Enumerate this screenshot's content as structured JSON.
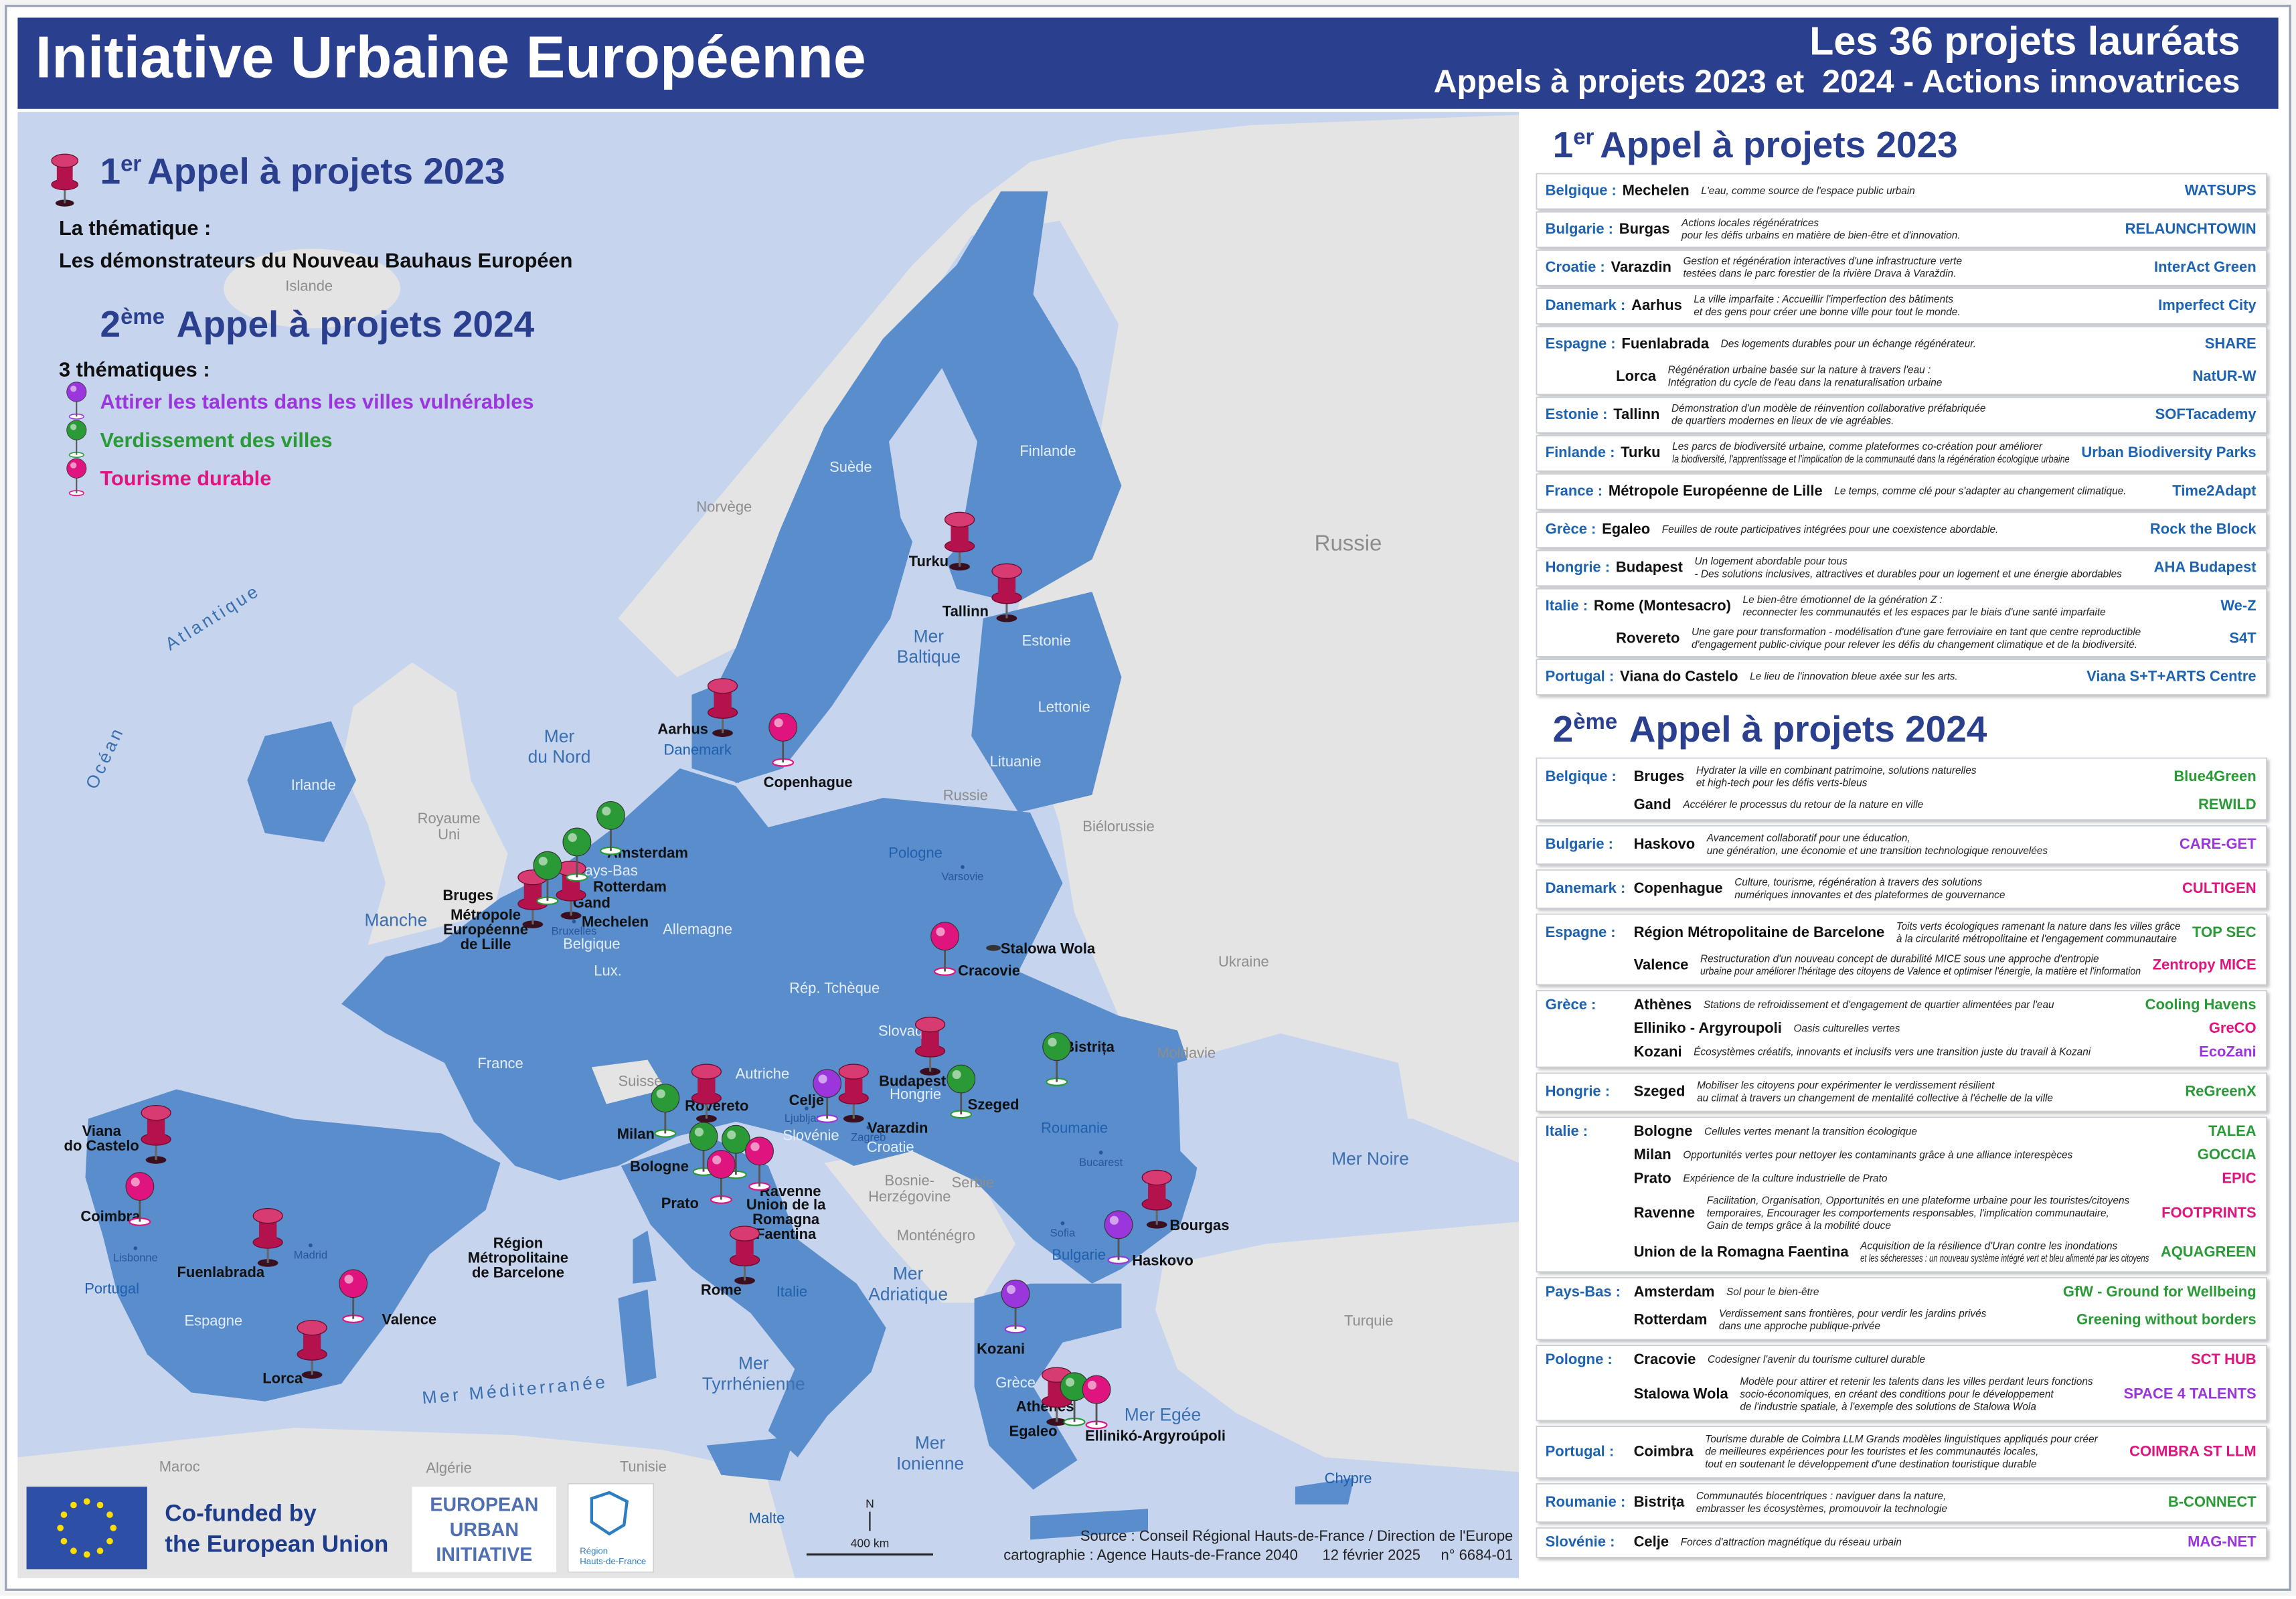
{
  "header": {
    "title": "Initiative Urbaine Européenne",
    "subtitle_line1": "Les 36 projets lauréats",
    "subtitle_line2": "Appels à projets 2023 et  2024 - Actions innovatrices"
  },
  "legend": {
    "call1": {
      "number": "1",
      "suffix": "er",
      "title": "Appel à projets 2023"
    },
    "call1_theme_label": "La thématique :",
    "call1_theme": "Les démonstrateurs du Nouveau Bauhaus Européen",
    "call2": {
      "number": "2",
      "suffix": "ème",
      "title": "Appel à projets 2024"
    },
    "call2_themes_label": "3 thématiques :",
    "themes": [
      {
        "name": "Attirer les talents dans les villes vulnérables",
        "color": "#9b35dc"
      },
      {
        "name": "Verdissement des villes",
        "color": "#2a9a36"
      },
      {
        "name": "Tourisme durable",
        "color": "#e0147f"
      }
    ],
    "call1_pin_color": "#b3124c"
  },
  "map": {
    "countries": [
      "Islande",
      "Irlande",
      [
        "Royaume",
        "Uni"
      ],
      "Norvège",
      "Suède",
      "Finlande",
      "Russie",
      "Estonie",
      "Lettonie",
      "Lituanie",
      "Russie",
      "Biélorussie",
      "Pologne",
      "Danemark",
      "Pays-Bas",
      "Belgique",
      "Lux.",
      "Allemagne",
      "Rép. Tchèque",
      "Slovaq",
      "Hongrie",
      "Autriche",
      "Suisse",
      "Slovénie",
      "Croatie",
      "Ukraine",
      "Moldavie",
      "Roumanie",
      "France",
      "Espagne",
      "Portugal",
      "Italie",
      "Bulgarie",
      "Grèce",
      "Turquie",
      [
        "Bosnie-",
        "Herzégovine"
      ],
      "Serbie",
      "Monténégro",
      "Maroc",
      "Algérie",
      "Tunisie",
      "Malte",
      "Chypre"
    ],
    "capitals": [
      "Varsovie",
      "Bucarest",
      "Sofia",
      "Madrid",
      "Lisbonne",
      "Bruxelles",
      "Ljubljana",
      "Zagreb"
    ],
    "seas": [
      "Océan",
      "Atlantique",
      [
        "Mer",
        "du Nord"
      ],
      "Manche",
      [
        "Mer",
        "Baltique"
      ],
      "Mer Noire",
      [
        "Mer",
        "Adriatique"
      ],
      [
        "Mer",
        "Tyrrhénienne"
      ],
      [
        "Mer",
        "Ionienne"
      ],
      "Mer Egée",
      "Mer Méditerranée"
    ],
    "cities": [
      "Turku",
      "Tallinn",
      "Aarhus",
      "Copenhague",
      "Amsterdam",
      "Rotterdam",
      "Bruges",
      "Gand",
      "Mechelen",
      [
        "Métropole",
        "Européenne",
        "de Lille"
      ],
      "Cracovie",
      "Stalowa Wola",
      "Budapest",
      "Bistrița",
      "Szeged",
      "Celje",
      "Varazdin",
      "Milan",
      "Rovereto",
      "Bologne",
      "Ravenne",
      "Prato",
      [
        "Union de la",
        "Romagna",
        "Faentina"
      ],
      "Rome",
      [
        "Viana",
        "do Castelo"
      ],
      "Coimbra",
      "Fuenlabrada",
      [
        "Région",
        "Métropolitaine",
        "de Barcelone"
      ],
      "Valence",
      "Lorca",
      "Bourgas",
      "Haskovo",
      "Kozani",
      "Athènes",
      "Egaleo",
      "Ellinikó-Argyroúpoli"
    ]
  },
  "panel": {
    "call1_project_color": "#1d63b0",
    "call1_projects": [
      {
        "country": "Belgique :",
        "items": [
          {
            "city": "Mechelen",
            "description": [
              "L'eau, comme source de l'espace public urbain"
            ],
            "project": "WATSUPS"
          }
        ]
      },
      {
        "country": "Bulgarie :",
        "items": [
          {
            "city": "Burgas",
            "description": [
              "Actions locales régénératrices",
              "pour les défis urbains en matière de bien-être et d'innovation."
            ],
            "project": "RELAUNCHTOWIN"
          }
        ]
      },
      {
        "country": "Croatie :",
        "items": [
          {
            "city": "Varazdin",
            "description": [
              "Gestion et régénération interactives d'une infrastructure verte",
              "testées dans le parc forestier de la rivière Drava à Varaždin."
            ],
            "project": "InterAct Green"
          }
        ]
      },
      {
        "country": "Danemark :",
        "items": [
          {
            "city": "Aarhus",
            "description": [
              "La ville imparfaite : Accueillir l'imperfection des bâtiments",
              "et des gens pour créer une bonne ville pour tout le monde."
            ],
            "project": "Imperfect City"
          }
        ]
      },
      {
        "country": "Espagne :",
        "items": [
          {
            "city": "Fuenlabrada",
            "description": [
              "Des logements durables pour un échange régénérateur."
            ],
            "project": "SHARE"
          },
          {
            "city": "Lorca",
            "description": [
              "Régénération urbaine basée sur la nature à travers l'eau :",
              "Intégration du cycle de l'eau dans la renaturalisation urbaine"
            ],
            "project": "NatUR-W"
          }
        ]
      },
      {
        "country": "Estonie :",
        "items": [
          {
            "city": "Tallinn",
            "description": [
              "Démonstration d'un modèle de réinvention collaborative préfabriquée",
              "de quartiers modernes en lieux de vie agréables."
            ],
            "project": "SOFTacademy"
          }
        ]
      },
      {
        "country": "Finlande :",
        "items": [
          {
            "city": "Turku",
            "description": [
              "Les parcs de biodiversité urbaine, comme plateformes co-création pour améliorer",
              "la biodiversité, l'apprentissage et l'implication de la communauté dans la régénération écologique urbaine"
            ],
            "project": "Urban Biodiversity Parks"
          }
        ]
      },
      {
        "country": "France :",
        "items": [
          {
            "city": "Métropole Européenne de Lille",
            "description": [
              "Le temps, comme clé pour s'adapter au changement climatique."
            ],
            "project": "Time2Adapt"
          }
        ]
      },
      {
        "country": "Grèce :",
        "items": [
          {
            "city": "Egaleo",
            "description": [
              "Feuilles de route participatives intégrées pour une coexistence abordable."
            ],
            "project": "Rock the Block"
          }
        ]
      },
      {
        "country": "Hongrie :",
        "items": [
          {
            "city": "Budapest",
            "description": [
              "Un logement abordable pour tous",
              "- Des solutions inclusives, attractives et durables pour un logement et une énergie abordables"
            ],
            "project": "AHA Budapest"
          }
        ]
      },
      {
        "country": "Italie :",
        "items": [
          {
            "city": "Rome (Montesacro)",
            "description": [
              "Le bien-être émotionnel de la génération Z :",
              "reconnecter les communautés et les espaces par le biais d'une santé imparfaite"
            ],
            "project": "We-Z"
          },
          {
            "city": "Rovereto",
            "description": [
              "Une gare pour transformation - modélisation d'une gare ferroviaire en tant que centre reproductible",
              "d'engagement public-civique pour relever les défis du changement climatique et de la biodiversité."
            ],
            "project": "S4T"
          }
        ]
      },
      {
        "country": "Portugal :",
        "items": [
          {
            "city": "Viana do Castelo",
            "description": [
              "Le lieu de l'innovation bleue axée sur les arts."
            ],
            "project": "Viana S+T+ARTS Centre"
          }
        ]
      }
    ],
    "call2_projects": [
      {
        "country": "Belgique :",
        "items": [
          {
            "city": "Bruges",
            "description": [
              "Hydrater la ville en combinant patrimoine, solutions naturelles",
              "et high-tech pour les défis verts-bleus"
            ],
            "project": "Blue4Green",
            "color": "#2a9a36"
          },
          {
            "city": "Gand",
            "description": [
              "Accélérer le processus du retour de la nature en ville"
            ],
            "project": "REWILD",
            "color": "#2a9a36"
          }
        ]
      },
      {
        "country": "Bulgarie :",
        "items": [
          {
            "city": "Haskovo",
            "description": [
              "Avancement collaboratif pour une éducation,",
              "une génération, une économie et une transition technologique renouvelées"
            ],
            "project": "CARE-GET",
            "color": "#9b35dc"
          }
        ]
      },
      {
        "country": "Danemark :",
        "items": [
          {
            "city": "Copenhague",
            "description": [
              "Culture, tourisme, régénération à travers des solutions",
              "numériques innovantes et des plateformes de gouvernance"
            ],
            "project": "CULTIGEN",
            "color": "#e0147f"
          }
        ]
      },
      {
        "country": "Espagne :",
        "items": [
          {
            "city": "Région Métropolitaine de Barcelone",
            "description": [
              "Toits verts écologiques ramenant la nature dans les villes grâce",
              "à la circularité métropolitaine et l'engagement communautaire"
            ],
            "project": "TOP SEC",
            "color": "#2a9a36"
          },
          {
            "city": "Valence",
            "description": [
              "Restructuration d'un nouveau concept de durabilité MICE sous une approche d'entropie",
              "urbaine pour améliorer l'héritage des citoyens de Valence et optimiser l'énergie, la matière et l'information"
            ],
            "project": "Zentropy MICE",
            "color": "#e0147f"
          }
        ]
      },
      {
        "country": "Grèce :",
        "items": [
          {
            "city": "Athènes",
            "description": [
              "Stations de refroidissement et d'engagement de quartier alimentées par l'eau"
            ],
            "project": "Cooling Havens",
            "color": "#2a9a36"
          },
          {
            "city": "Elliniko - Argyroupoli",
            "description": [
              "Oasis culturelles vertes"
            ],
            "project": "GreCO",
            "color": "#e0147f"
          },
          {
            "city": "Kozani",
            "description": [
              "Écosystèmes créatifs, innovants et inclusifs vers une transition juste du travail à Kozani"
            ],
            "project": "EcoZani",
            "color": "#9b35dc"
          }
        ]
      },
      {
        "country": "Hongrie :",
        "items": [
          {
            "city": "Szeged",
            "description": [
              "Mobiliser les citoyens pour expérimenter le verdissement résilient",
              "au climat à travers un changement de mentalité collective à l'échelle de la ville"
            ],
            "project": "ReGreenX",
            "color": "#2a9a36"
          }
        ]
      },
      {
        "country": "Italie :",
        "items": [
          {
            "city": "Bologne",
            "description": [
              "Cellules vertes menant la transition écologique"
            ],
            "project": "TALEA",
            "color": "#2a9a36"
          },
          {
            "city": "Milan",
            "description": [
              "Opportunités vertes pour nettoyer les contaminants grâce à une alliance interespèces"
            ],
            "project": "GOCCIA",
            "color": "#2a9a36"
          },
          {
            "city": "Prato",
            "description": [
              "Expérience de la culture industrielle de Prato"
            ],
            "project": "EPIC",
            "color": "#e0147f"
          },
          {
            "city": "Ravenne",
            "description": [
              "Facilitation, Organisation, Opportunités en une plateforme urbaine pour les touristes/citoyens",
              "temporaires, Encourager les comportements responsables, l'implication communautaire,",
              "Gain de temps grâce à la mobilité douce"
            ],
            "project": "FOOTPRINTS",
            "color": "#e0147f"
          },
          {
            "city": "Union de la Romagna Faentina",
            "description": [
              "Acquisition de la résilience d'Uran contre les inondations",
              "et les sécheresses : un nouveau système intégré vert et bleu alimenté par les citoyens"
            ],
            "project": "AQUAGREEN",
            "color": "#2a9a36"
          }
        ]
      },
      {
        "country": "Pays-Bas :",
        "items": [
          {
            "city": "Amsterdam",
            "description": [
              "Sol pour le bien-être"
            ],
            "project": "GfW - Ground for Wellbeing",
            "color": "#2a9a36"
          },
          {
            "city": "Rotterdam",
            "description": [
              "Verdissement sans frontières, pour verdir les jardins privés",
              "dans une approche publique-privée"
            ],
            "project": "Greening without borders",
            "color": "#2a9a36"
          }
        ]
      },
      {
        "country": "Pologne :",
        "items": [
          {
            "city": "Cracovie",
            "description": [
              "Codesigner l'avenir du tourisme culturel durable"
            ],
            "project": "SCT HUB",
            "color": "#e0147f"
          },
          {
            "city": "Stalowa Wola",
            "description": [
              "Modèle pour attirer et retenir les talents dans les villes perdant leurs fonctions",
              "socio-économiques, en créant des conditions pour le développement",
              "de l'industrie spatiale, à l'exemple des solutions de Stalowa Wola"
            ],
            "project": "SPACE 4 TALENTS",
            "color": "#9b35dc"
          }
        ]
      },
      {
        "country": "Portugal :",
        "items": [
          {
            "city": "Coimbra",
            "description": [
              "Tourisme durable de Coimbra LLM Grands modèles linguistiques appliqués pour créer",
              "de meilleures expériences pour les touristes et les communautés locales,",
              "tout en soutenant le développement d'une destination touristique durable"
            ],
            "project": "COIMBRA ST LLM",
            "color": "#e0147f"
          }
        ]
      },
      {
        "country": "Roumanie :",
        "items": [
          {
            "city": "Bistrița",
            "description": [
              "Communautés biocentriques : naviguer dans la nature,",
              "embrasser les écosystèmes, promouvoir la technologie"
            ],
            "project": "B-CONNECT",
            "color": "#2a9a36"
          }
        ]
      },
      {
        "country": "Slovénie :",
        "items": [
          {
            "city": "Celje",
            "description": [
              "Forces d'attraction magnétique du réseau urbain"
            ],
            "project": "MAG-NET",
            "color": "#9b35dc"
          }
        ]
      }
    ]
  },
  "footer": {
    "cofunded_line1": "Co-funded by",
    "cofunded_line2": "the European Union",
    "eui_line1": "EUROPEAN",
    "eui_line2": "URBAN",
    "eui_line3": "INITIATIVE",
    "region_line1": "Région",
    "region_line2": "Hauts-de-France",
    "north": "N",
    "scale": "400 km",
    "source": "Source : Conseil Régional Hauts-de-France / Direction de l'Europe",
    "credits": "cartographie : Agence Hauts-de-France 2040      12 février 2025     n° 6684-01"
  }
}
